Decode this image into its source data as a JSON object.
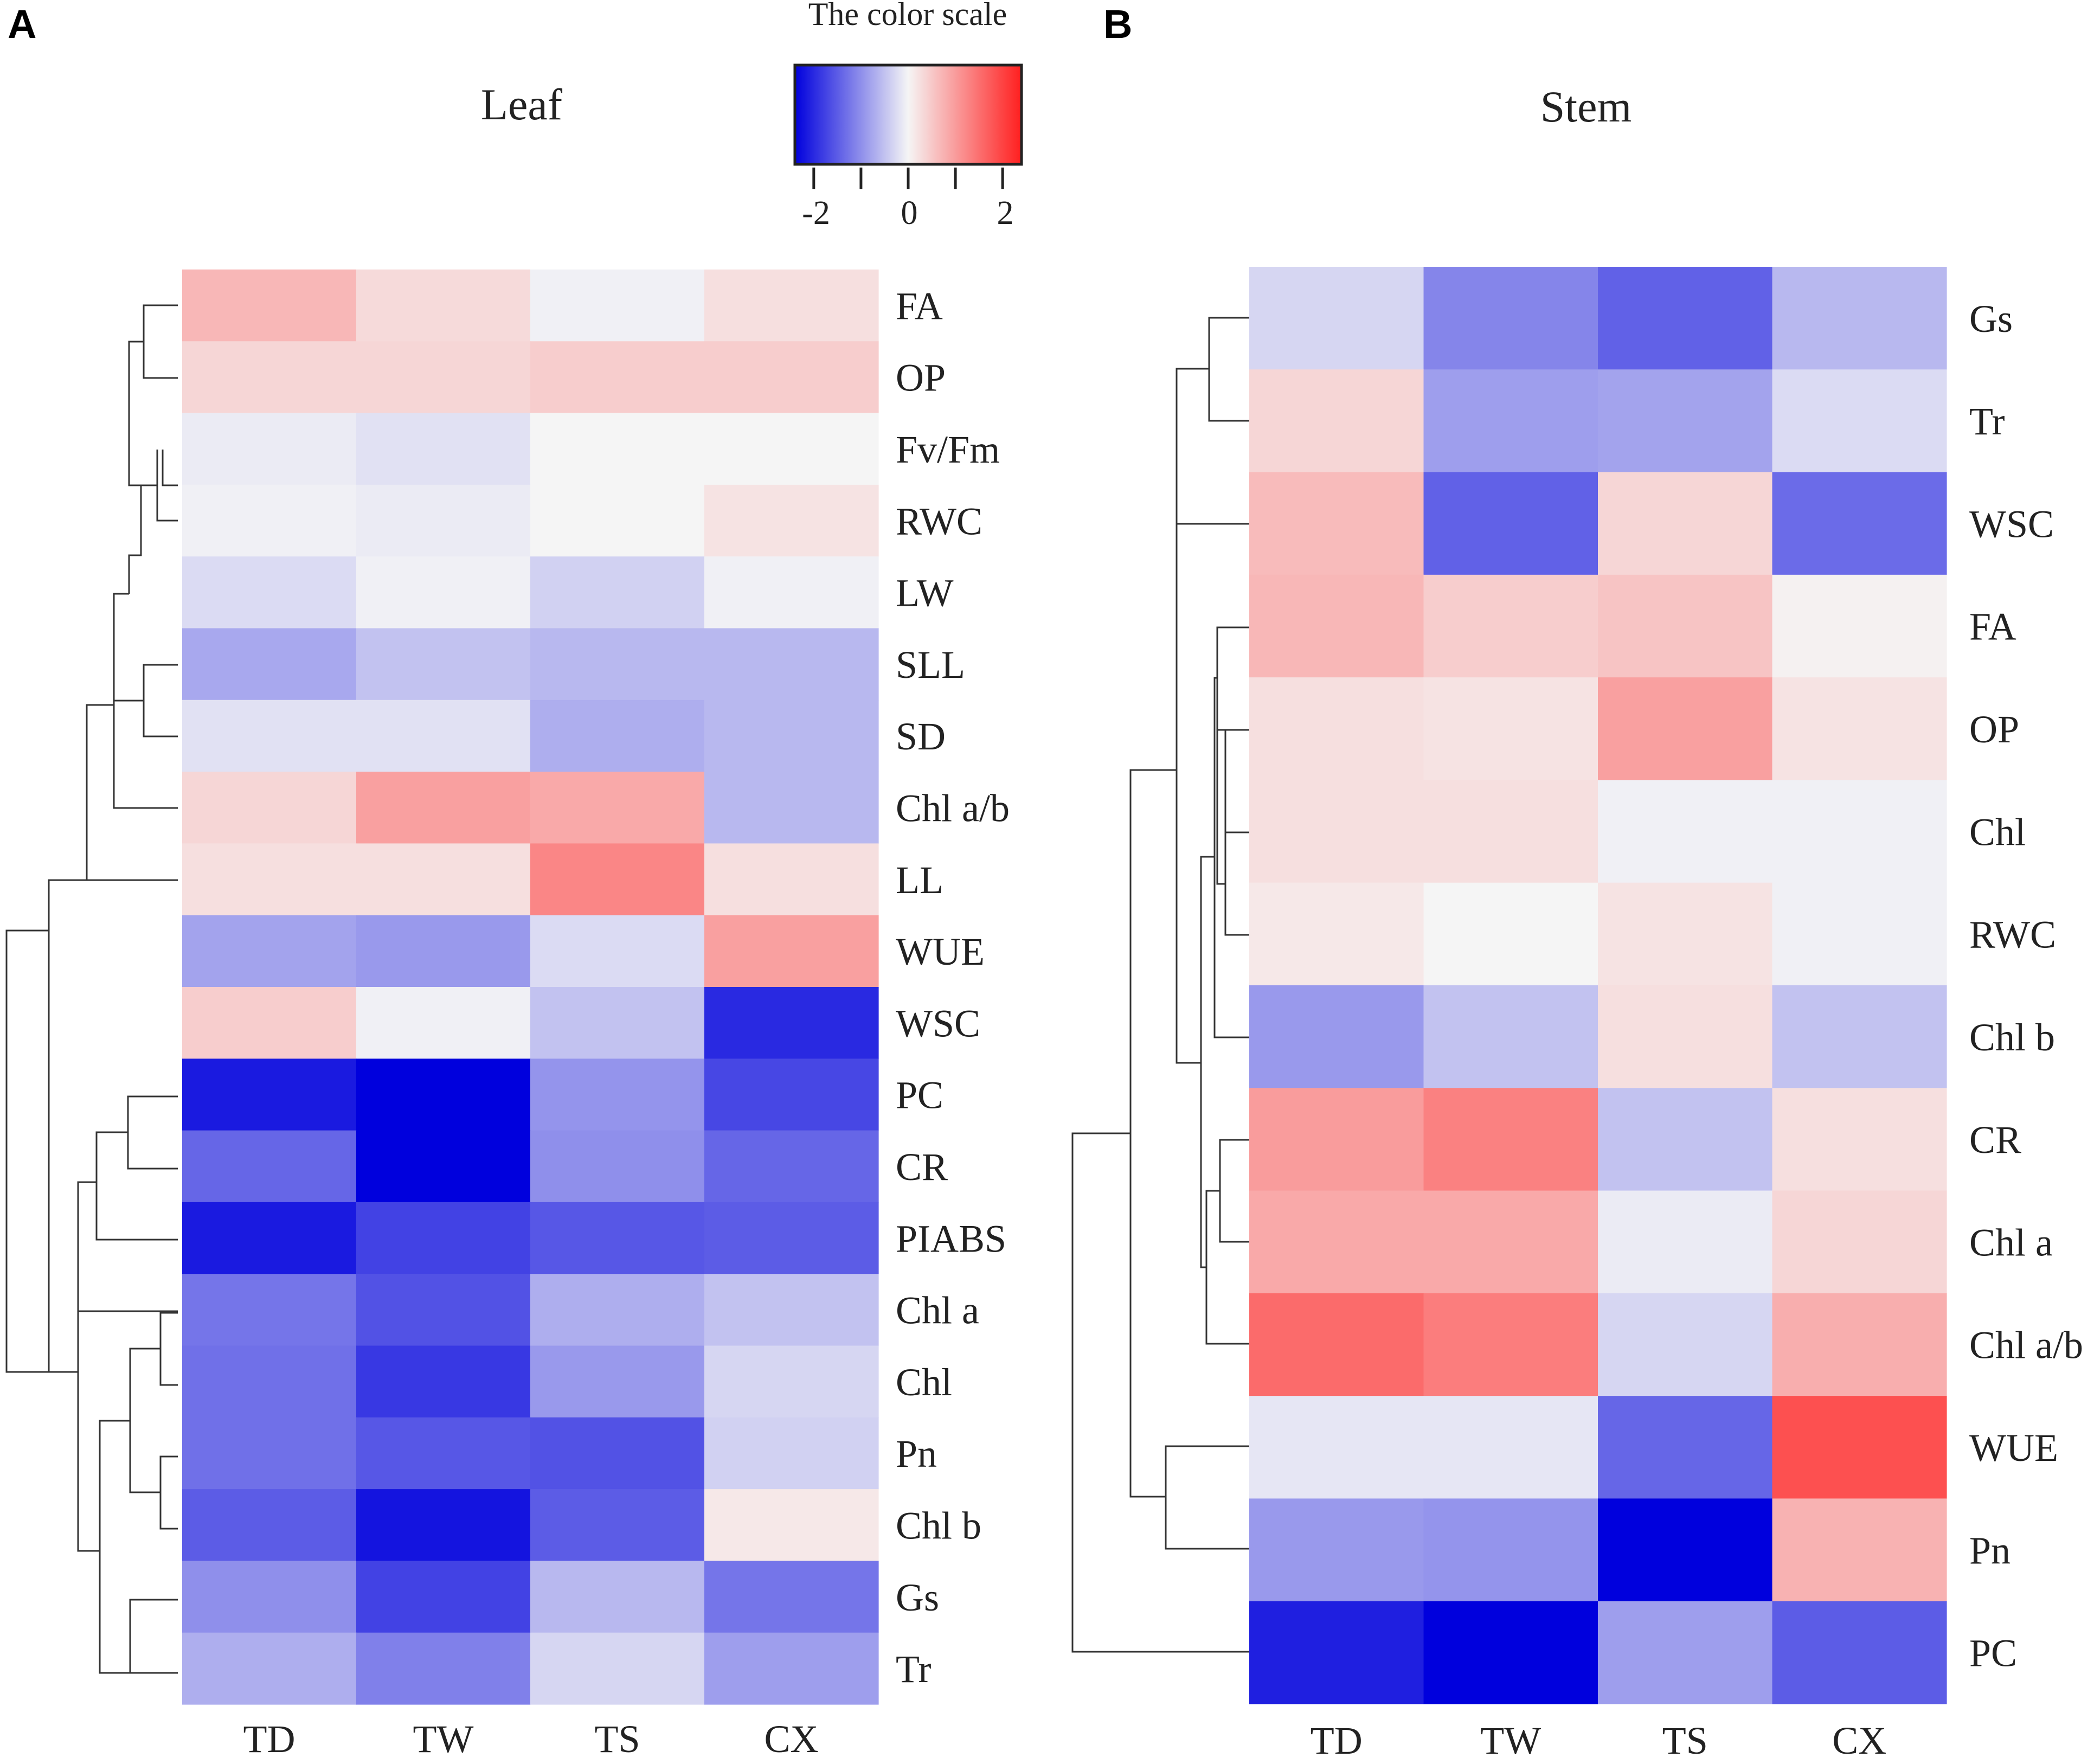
{
  "panel_letters": [
    "A",
    "B"
  ],
  "color_scale": {
    "title": "The color scale",
    "tick_labels": [
      "-2",
      "0",
      "2"
    ],
    "min": -2.4,
    "max": 2.4,
    "low_color": "#0000dd",
    "mid_color": "#f5f5f5",
    "high_color": "#ff1f1f"
  },
  "chart_data": [
    {
      "type": "heatmap",
      "title": "Leaf",
      "columns": [
        "TD",
        "TW",
        "TS",
        "CX"
      ],
      "rows": [
        "FA",
        "OP",
        "Fv/Fm",
        "RWC",
        "LW",
        "SLL",
        "SD",
        "Chl a/b",
        "LL",
        "WUE",
        "WSC",
        "PC",
        "CR",
        "PIABS",
        "Chl a",
        "Chl",
        "Pn",
        "Chl b",
        "Gs",
        "Tr"
      ],
      "values": [
        [
          0.7,
          0.3,
          -0.05,
          0.25
        ],
        [
          0.35,
          0.35,
          0.45,
          0.45
        ],
        [
          -0.1,
          -0.2,
          0.0,
          0.0
        ],
        [
          -0.05,
          -0.1,
          0.0,
          0.2
        ],
        [
          -0.25,
          -0.05,
          -0.35,
          -0.05
        ],
        [
          -0.75,
          -0.5,
          -0.6,
          -0.6
        ],
        [
          -0.2,
          -0.2,
          -0.7,
          -0.6
        ],
        [
          0.35,
          0.95,
          0.85,
          -0.6
        ],
        [
          0.25,
          0.25,
          1.25,
          0.25
        ],
        [
          -0.8,
          -0.9,
          -0.25,
          0.95
        ],
        [
          0.45,
          -0.05,
          -0.5,
          -2.0
        ],
        [
          -2.15,
          -2.45,
          -0.95,
          -1.7
        ],
        [
          -1.4,
          -2.55,
          -1.0,
          -1.4
        ],
        [
          -2.15,
          -1.75,
          -1.55,
          -1.5
        ],
        [
          -1.25,
          -1.6,
          -0.7,
          -0.5
        ],
        [
          -1.3,
          -1.85,
          -0.9,
          -0.3
        ],
        [
          -1.3,
          -1.55,
          -1.6,
          -0.35
        ],
        [
          -1.5,
          -2.2,
          -1.5,
          0.15
        ],
        [
          -1.0,
          -1.75,
          -0.6,
          -1.25
        ],
        [
          -0.7,
          -1.15,
          -0.3,
          -0.85
        ]
      ],
      "xlabel": "",
      "ylabel": ""
    },
    {
      "type": "heatmap",
      "title": "Stem",
      "columns": [
        "TD",
        "TW",
        "TS",
        "CX"
      ],
      "rows": [
        "Gs",
        "Tr",
        "WSC",
        "FA",
        "OP",
        "Chl",
        "RWC",
        "Chl b",
        "CR",
        "Chl a",
        "Chl a/b",
        "WUE",
        "Pn",
        "PC"
      ],
      "values": [
        [
          -0.3,
          -1.1,
          -1.45,
          -0.6
        ],
        [
          0.35,
          -0.85,
          -0.8,
          -0.25
        ],
        [
          0.65,
          -1.45,
          0.35,
          -1.35
        ],
        [
          0.7,
          0.45,
          0.55,
          0.05
        ],
        [
          0.25,
          0.2,
          0.95,
          0.2
        ],
        [
          0.25,
          0.25,
          -0.05,
          -0.05
        ],
        [
          0.15,
          0.0,
          0.2,
          -0.05
        ],
        [
          -0.9,
          -0.5,
          0.25,
          -0.5
        ],
        [
          1.0,
          1.3,
          -0.5,
          0.25
        ],
        [
          0.85,
          0.85,
          -0.1,
          0.35
        ],
        [
          1.55,
          1.35,
          -0.3,
          0.8
        ],
        [
          -0.15,
          -0.15,
          -1.4,
          1.85
        ],
        [
          -0.9,
          -0.95,
          -2.45,
          0.75
        ],
        [
          -2.1,
          -2.65,
          -0.85,
          -1.5
        ]
      ],
      "xlabel": "",
      "ylabel": ""
    }
  ]
}
